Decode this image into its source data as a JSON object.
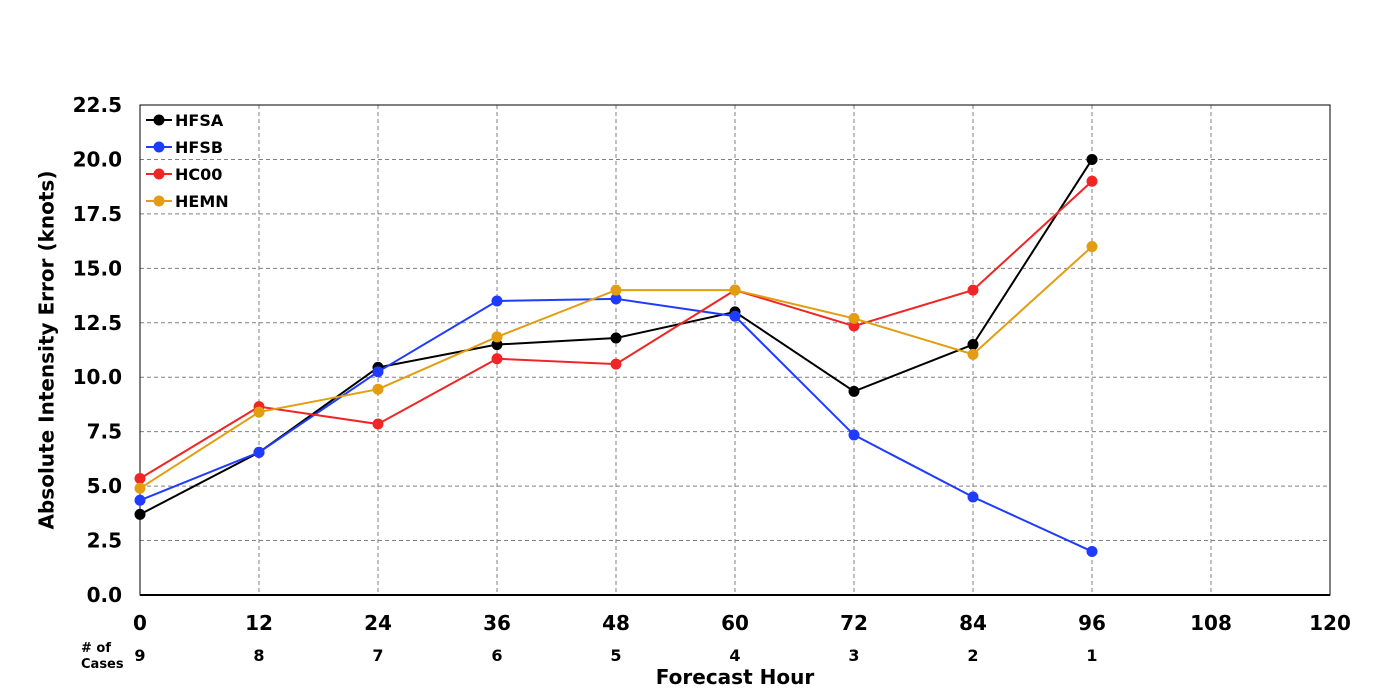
{
  "chart_data": {
    "type": "line",
    "xlabel": "Forecast Hour",
    "ylabel": "Absolute Intensity Error (knots)",
    "xlim": [
      0,
      120
    ],
    "ylim": [
      0,
      22.5
    ],
    "x_ticks": [
      "0",
      "12",
      "24",
      "36",
      "48",
      "60",
      "72",
      "84",
      "96",
      "108",
      "120"
    ],
    "y_ticks": [
      "0.0",
      "2.5",
      "5.0",
      "7.5",
      "10.0",
      "12.5",
      "15.0",
      "17.5",
      "20.0",
      "22.5"
    ],
    "grid": true,
    "legend_position": "top-left",
    "x": [
      0,
      12,
      24,
      36,
      48,
      60,
      72,
      84,
      96
    ],
    "series": [
      {
        "name": "HFSA",
        "color": "#000000",
        "values": [
          3.7,
          6.55,
          10.45,
          11.5,
          11.8,
          13.0,
          9.35,
          11.5,
          20.0
        ]
      },
      {
        "name": "HFSB",
        "color": "#1f3bff",
        "values": [
          4.35,
          6.55,
          10.25,
          13.5,
          13.6,
          12.8,
          7.35,
          4.5,
          2.0
        ]
      },
      {
        "name": "HC00",
        "color": "#f02525",
        "values": [
          5.35,
          8.65,
          7.85,
          10.85,
          10.6,
          14.0,
          12.35,
          14.0,
          19.0
        ]
      },
      {
        "name": "HEMN",
        "color": "#e39d10",
        "values": [
          4.9,
          8.4,
          9.45,
          11.85,
          14.0,
          14.0,
          12.7,
          11.05,
          16.0
        ]
      }
    ],
    "cases_label": "# of\nCases",
    "cases_label_lines": [
      "# of",
      "Cases"
    ],
    "cases": [
      "9",
      "8",
      "7",
      "6",
      "5",
      "4",
      "3",
      "2",
      "1"
    ]
  }
}
